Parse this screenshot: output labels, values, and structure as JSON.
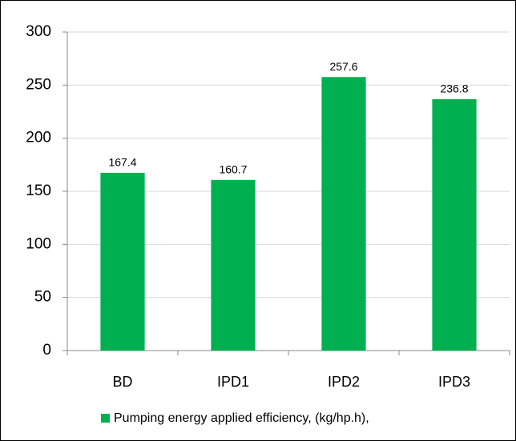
{
  "chart_data": {
    "type": "bar",
    "categories": [
      "BD",
      "IPD1",
      "IPD2",
      "IPD3"
    ],
    "series": [
      {
        "name": "Pumping energy applied efficiency, (kg/hp.h),",
        "color": "#00b050",
        "values": [
          167.4,
          160.7,
          257.6,
          236.8
        ]
      }
    ],
    "ylim": [
      0,
      300
    ],
    "yticks": [
      0,
      50,
      100,
      150,
      200,
      250,
      300
    ],
    "grid": true,
    "legend": "bottom"
  }
}
